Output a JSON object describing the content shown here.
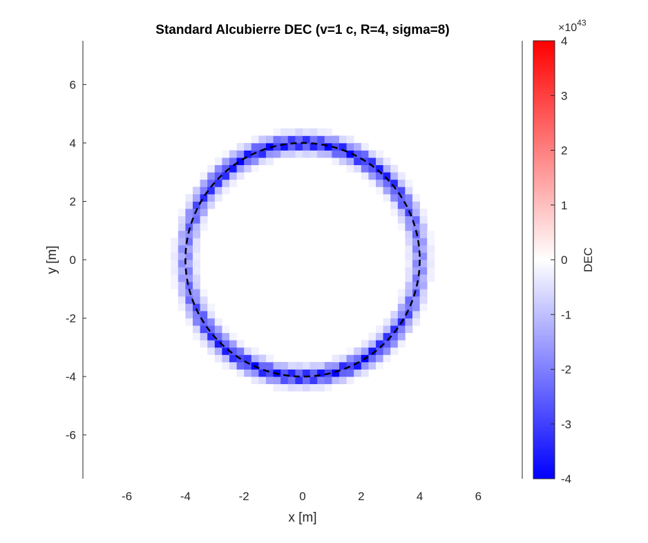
{
  "chart_data": {
    "type": "heatmap",
    "title": "Standard Alcubierre DEC (v=1 c, R=4, sigma=8)",
    "xlabel": "x [m]",
    "ylabel": "y [m]",
    "xlim": [
      -7.5,
      7.5
    ],
    "ylim": [
      -7.5,
      7.5
    ],
    "xticks": [
      "-6",
      "-4",
      "-2",
      "0",
      "2",
      "4",
      "6"
    ],
    "yticks": [
      "-6",
      "-4",
      "-2",
      "0",
      "2",
      "4",
      "6"
    ],
    "colorbar": {
      "label": "DEC",
      "exponent_label": "×10",
      "exponent_power": "43",
      "range": [
        -4,
        4
      ],
      "ticks": [
        "-4",
        "-3",
        "-2",
        "-1",
        "0",
        "1",
        "2",
        "3",
        "4"
      ],
      "colormap": [
        "#0000ff",
        "#ffffff",
        "#ff0000"
      ]
    },
    "field": {
      "description": "energy condition value concentrated on the warp bubble wall",
      "bubble_radius": 4,
      "grid_step": 0.25,
      "min_value": -4,
      "max_value": 0
    },
    "overlay": {
      "label": "",
      "shape": "circle",
      "center": [
        0,
        0
      ],
      "radius": 4,
      "style": "dashed",
      "color": "#000000"
    },
    "grid": false,
    "legend": "none"
  }
}
